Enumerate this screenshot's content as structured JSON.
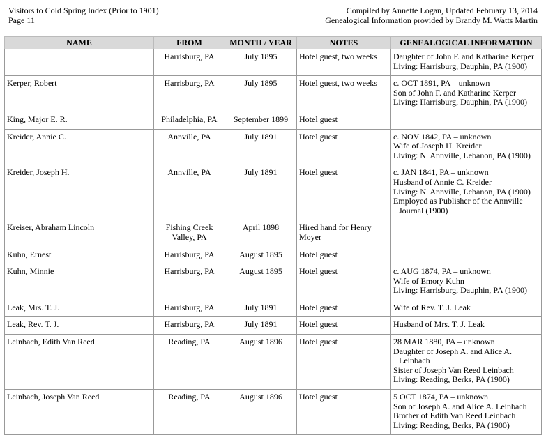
{
  "header": {
    "title": "Visitors to Cold Spring Index (Prior to 1901)",
    "page": "Page 11",
    "compiled": "Compiled by Annette Logan, Updated February 13, 2014",
    "provided": "Genealogical Information provided by Brandy M. Watts Martin"
  },
  "table": {
    "columns": [
      "NAME",
      "FROM",
      "MONTH / YEAR",
      "NOTES",
      "GENEALOGICAL INFORMATION"
    ],
    "rows": [
      [
        [],
        [
          "Harrisburg, PA"
        ],
        [
          "July 1895"
        ],
        [
          "Hotel guest, two weeks"
        ],
        [
          "Daughter of John F. and Katharine Kerper",
          "Living: Harrisburg, Dauphin, PA (1900)"
        ]
      ],
      [
        [
          "Kerper, Robert"
        ],
        [
          "Harrisburg, PA"
        ],
        [
          "July 1895"
        ],
        [
          "Hotel guest, two weeks"
        ],
        [
          "c. OCT 1891, PA – unknown",
          "Son of John F. and Katharine Kerper",
          "Living: Harrisburg, Dauphin, PA (1900)"
        ]
      ],
      [
        [
          "King, Major E. R."
        ],
        [
          "Philadelphia, PA"
        ],
        [
          "September 1899"
        ],
        [
          "Hotel guest"
        ],
        []
      ],
      [
        [
          "Kreider, Annie C."
        ],
        [
          "Annville, PA"
        ],
        [
          "July 1891"
        ],
        [
          "Hotel guest"
        ],
        [
          "c. NOV 1842, PA – unknown",
          "Wife of Joseph H. Kreider",
          "Living: N. Annville, Lebanon, PA (1900)"
        ]
      ],
      [
        [
          "Kreider, Joseph H."
        ],
        [
          "Annville, PA"
        ],
        [
          "July 1891"
        ],
        [
          "Hotel guest"
        ],
        [
          "c. JAN 1841, PA – unknown",
          "Husband of Annie C. Kreider",
          "Living: N. Annville, Lebanon, PA (1900)",
          "Employed as Publisher of the Annville",
          "Journal (1900)"
        ]
      ],
      [
        [
          "Kreiser, Abraham Lincoln"
        ],
        [
          "Fishing Creek",
          "Valley, PA"
        ],
        [
          "April 1898"
        ],
        [
          "Hired hand for Henry",
          "Moyer"
        ],
        []
      ],
      [
        [
          "Kuhn, Ernest"
        ],
        [
          "Harrisburg, PA"
        ],
        [
          "August 1895"
        ],
        [
          "Hotel guest"
        ],
        []
      ],
      [
        [
          "Kuhn, Minnie"
        ],
        [
          "Harrisburg, PA"
        ],
        [
          "August 1895"
        ],
        [
          "Hotel guest"
        ],
        [
          "c. AUG 1874, PA – unknown",
          "Wife of Emory Kuhn",
          "Living: Harrisburg, Dauphin, PA (1900)"
        ]
      ],
      [
        [
          "Leak, Mrs. T. J."
        ],
        [
          "Harrisburg, PA"
        ],
        [
          "July 1891"
        ],
        [
          "Hotel guest"
        ],
        [
          "Wife of Rev. T. J. Leak"
        ]
      ],
      [
        [
          "Leak, Rev. T. J."
        ],
        [
          "Harrisburg, PA"
        ],
        [
          "July 1891"
        ],
        [
          "Hotel guest"
        ],
        [
          "Husband of Mrs. T. J. Leak"
        ]
      ],
      [
        [
          "Leinbach, Edith Van Reed"
        ],
        [
          "Reading, PA"
        ],
        [
          "August 1896"
        ],
        [
          "Hotel guest"
        ],
        [
          "28  MAR 1880, PA – unknown",
          "Daughter of Joseph A. and Alice A.",
          "Leinbach",
          "Sister of Joseph Van Reed Leinbach",
          "Living: Reading, Berks, PA (1900)"
        ]
      ],
      [
        [
          "Leinbach, Joseph Van Reed"
        ],
        [
          "Reading, PA"
        ],
        [
          "August 1896"
        ],
        [
          "Hotel guest"
        ],
        [
          "5 OCT 1874, PA – unknown",
          "Son of Joseph A. and Alice A. Leinbach",
          "Brother of Edith Van Reed Leinbach",
          "Living: Reading, Berks, PA (1900)"
        ]
      ]
    ]
  }
}
